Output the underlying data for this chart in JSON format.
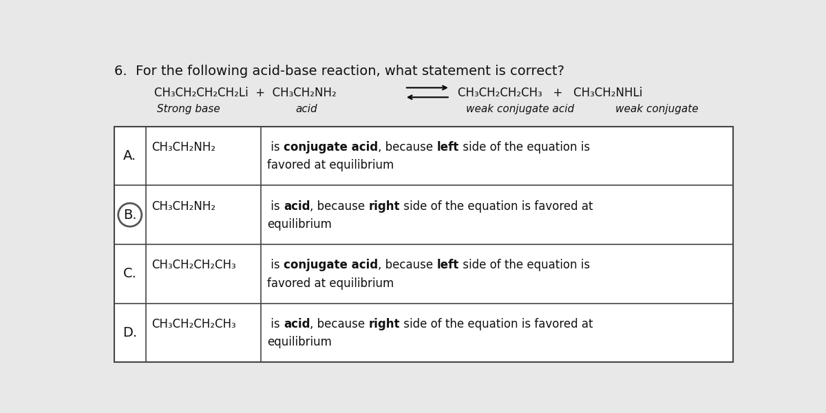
{
  "title": "6.  For the following acid-base reaction, what statement is correct?",
  "bg_color": "#e8e8e8",
  "table_bg": "#e8e8e8",
  "border_color": "#444444",
  "text_color": "#111111",
  "circle_color": "#555555",
  "eq_left": "CH₃CH₂CH₂CH₂Li  +  CH₃CH₂NH₂",
  "eq_right": "CH₃CH₂CH₂CH₃   +   CH₃CH₂NHLi",
  "lbl_strong_base": "Strong base",
  "lbl_acid": "acid",
  "lbl_wk_conj_acid": "weak conjugate acid",
  "lbl_wk_conj": "weak conjugate",
  "options": [
    {
      "letter": "A.",
      "subject": "CH₃CH₂NH₂",
      "line1_segs": [
        {
          "t": " is ",
          "b": false
        },
        {
          "t": "conjugate acid",
          "b": true
        },
        {
          "t": ", because ",
          "b": false
        },
        {
          "t": "left",
          "b": true
        },
        {
          "t": " side of the equation is",
          "b": false
        }
      ],
      "line2": "favored at equilibrium",
      "circled": false
    },
    {
      "letter": "B.",
      "subject": "CH₃CH₂NH₂",
      "line1_segs": [
        {
          "t": " is ",
          "b": false
        },
        {
          "t": "acid",
          "b": true
        },
        {
          "t": ", because ",
          "b": false
        },
        {
          "t": "right",
          "b": true
        },
        {
          "t": " side of the equation is favored at",
          "b": false
        }
      ],
      "line2": "equilibrium",
      "circled": true
    },
    {
      "letter": "C.",
      "subject": "CH₃CH₂CH₂CH₃",
      "line1_segs": [
        {
          "t": " is ",
          "b": false
        },
        {
          "t": "conjugate acid",
          "b": true
        },
        {
          "t": ", because ",
          "b": false
        },
        {
          "t": "left",
          "b": true
        },
        {
          "t": " side of the equation is",
          "b": false
        }
      ],
      "line2": "favored at equilibrium",
      "circled": false
    },
    {
      "letter": "D.",
      "subject": "CH₃CH₂CH₂CH₃",
      "line1_segs": [
        {
          "t": " is ",
          "b": false
        },
        {
          "t": "acid",
          "b": true
        },
        {
          "t": ", because ",
          "b": false
        },
        {
          "t": "right",
          "b": true
        },
        {
          "t": " side of the equation is favored at",
          "b": false
        }
      ],
      "line2": "equilibrium",
      "circled": false
    }
  ]
}
